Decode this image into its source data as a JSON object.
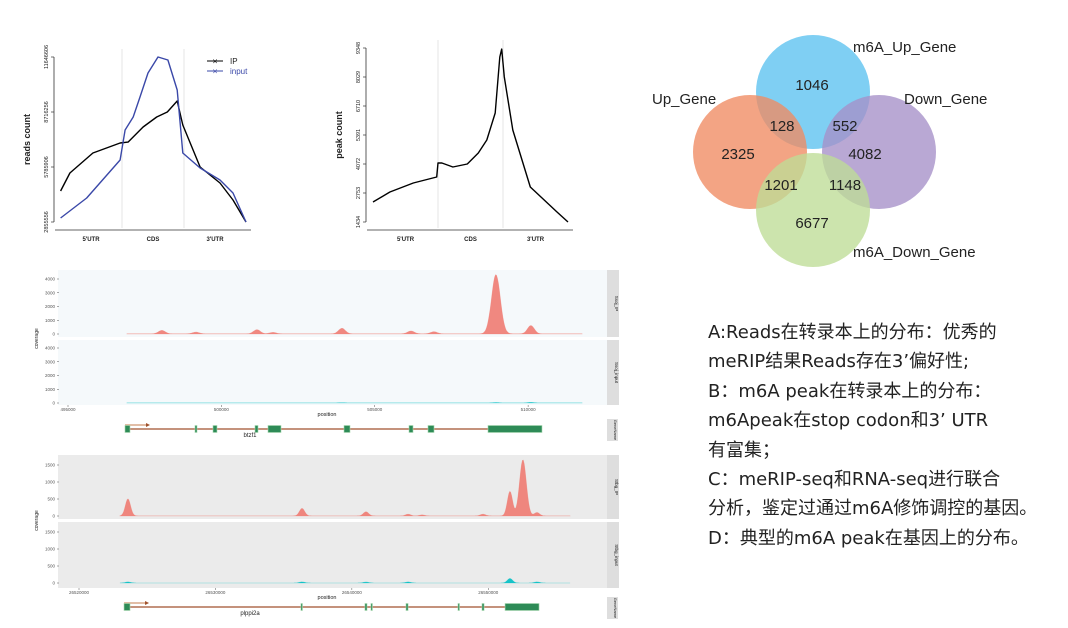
{
  "chart_data": [
    {
      "type": "line",
      "ylabel": "reads count",
      "categories": [
        "5'UTR",
        "CDS",
        "3'UTR"
      ],
      "xlim": [
        0,
        3
      ],
      "ylim": [
        2855556,
        11646606
      ],
      "yticks": [
        "2855556",
        "5785906",
        "8716256",
        "11646606"
      ],
      "legend": "top-right",
      "series": [
        {
          "name": "IP",
          "color": "#000000",
          "x": [
            0.01,
            0.16,
            0.53,
            0.97,
            1.1,
            1.34,
            1.56,
            1.73,
            1.89,
            1.98,
            2.26,
            2.58,
            2.79,
            3.0
          ],
          "y": [
            4507000,
            5466000,
            6532000,
            7064000,
            7118000,
            7917000,
            8450000,
            8716000,
            9302000,
            8024000,
            5786000,
            4934000,
            4028000,
            2856000
          ]
        },
        {
          "name": "input",
          "color": "#3a48a8",
          "x": [
            0.01,
            0.43,
            0.97,
            1.05,
            1.18,
            1.29,
            1.42,
            1.58,
            1.74,
            1.89,
            1.98,
            2.26,
            2.58,
            2.79,
            3.0
          ],
          "y": [
            3069000,
            4134000,
            6159000,
            7757000,
            8450000,
            9516000,
            10794000,
            11647000,
            11487000,
            9889000,
            6532000,
            5733000,
            5093000,
            4401000,
            2856000
          ]
        }
      ]
    },
    {
      "type": "line",
      "ylabel": "peak count",
      "categories": [
        "5'UTR",
        "CDS",
        "3'UTR"
      ],
      "xlim": [
        0,
        3
      ],
      "ylim": [
        1434,
        9348
      ],
      "yticks": [
        "1434",
        "2753",
        "4072",
        "5391",
        "6710",
        "8029",
        "9348"
      ],
      "series": [
        {
          "color": "#000000",
          "x": [
            0,
            0.26,
            0.62,
            0.98,
            1.0,
            1.06,
            1.23,
            1.45,
            1.62,
            1.75,
            1.88,
            1.95,
            1.98,
            2.02,
            2.15,
            2.42,
            2.83,
            3.0
          ],
          "y": [
            2344,
            2799,
            3208,
            3481,
            4118,
            4118,
            3936,
            4072,
            4572,
            5163,
            6392,
            8938,
            9300,
            8029,
            5618,
            3026,
            1889,
            1434
          ]
        }
      ]
    },
    {
      "type": "venn",
      "sets": [
        {
          "name": "m6A_Up_Gene",
          "color": "#5bc1f0",
          "only": "1046"
        },
        {
          "name": "Up_Gene",
          "color": "#f08a62",
          "only": "2325"
        },
        {
          "name": "Down_Gene",
          "color": "#a58fc8",
          "only": "4082"
        },
        {
          "name": "m6A_Down_Gene",
          "color": "#bedd96",
          "only": "6677"
        }
      ],
      "overlaps": {
        "Up_Gene&m6A_Up_Gene": "128",
        "m6A_Up_Gene&Down_Gene": "552",
        "Up_Gene&m6A_Down_Gene": "1201",
        "Down_Gene&m6A_Down_Gene": "1148"
      }
    },
    {
      "type": "area",
      "gene": "btzf1",
      "xlabel": "position",
      "ylabel": "coverage",
      "xticks": [
        "495000",
        "500000",
        "505000",
        "510000"
      ],
      "yticks": [
        "0",
        "1000",
        "2000",
        "3000",
        "4000"
      ],
      "ylim": [
        0,
        4000
      ],
      "gene_strip": "GeneName",
      "tracks": [
        {
          "name": "Ssoj_IP",
          "color": "#f07b72",
          "range": [
            496920,
            511760
          ],
          "peaks": [
            [
              498060,
              250
            ],
            [
              499170,
              120
            ],
            [
              501160,
              300
            ],
            [
              501680,
              100
            ],
            [
              503930,
              400
            ],
            [
              506180,
              200
            ],
            [
              506930,
              150
            ],
            [
              508950,
              4300
            ],
            [
              510090,
              600
            ]
          ]
        },
        {
          "name": "Ssoj_input",
          "color": "#00bfc4",
          "range": [
            496920,
            511760
          ],
          "peaks": [
            [
              503930,
              20
            ],
            [
              508950,
              30
            ],
            [
              510090,
              40
            ]
          ]
        }
      ],
      "exons": [
        [
          496858,
          497021
        ],
        [
          499140,
          499205
        ],
        [
          499727,
          499857
        ],
        [
          501096,
          501194
        ],
        [
          501520,
          501944
        ],
        [
          503998,
          504193
        ],
        [
          506117,
          506247
        ],
        [
          506736,
          506932
        ],
        [
          508692,
          510452
        ]
      ]
    },
    {
      "type": "area",
      "gene": "plppi2a",
      "xlabel": "position",
      "ylabel": "coverage",
      "xticks": [
        "26520000",
        "26530000",
        "26540000",
        "26550000"
      ],
      "yticks": [
        "0",
        "500",
        "1000",
        "1500"
      ],
      "ylim": [
        0,
        1500
      ],
      "gene_strip": "GeneName",
      "tracks": [
        {
          "name": "Stbg_IP",
          "color": "#f07b72",
          "range": [
            26523000,
            26556000
          ],
          "peaks": [
            [
              26523590,
              500
            ],
            [
              26536350,
              220
            ],
            [
              26541040,
              120
            ],
            [
              26544120,
              50
            ],
            [
              26545140,
              30
            ],
            [
              26549610,
              50
            ],
            [
              26551590,
              720
            ],
            [
              26552540,
              1650
            ],
            [
              26553570,
              100
            ]
          ]
        },
        {
          "name": "Stbg_input",
          "color": "#00bfc4",
          "range": [
            26523000,
            26556000
          ],
          "peaks": [
            [
              26523590,
              30
            ],
            [
              26536350,
              30
            ],
            [
              26541040,
              25
            ],
            [
              26544120,
              30
            ],
            [
              26551590,
              130
            ],
            [
              26553570,
              30
            ]
          ]
        }
      ],
      "exons": [
        [
          26523300,
          26523740
        ],
        [
          26536270,
          26536350
        ],
        [
          26540960,
          26541110
        ],
        [
          26541400,
          26541480
        ],
        [
          26543970,
          26544120
        ],
        [
          26547780,
          26547850
        ],
        [
          26549540,
          26549690
        ],
        [
          26551230,
          26553720
        ]
      ]
    }
  ],
  "caption": {
    "lines": [
      "A:Reads在转录本上的分布：优秀的",
      "meRIP结果Reads存在3’偏好性;",
      "B：m6A peak在转录本上的分布：",
      "m6Apeak在stop codon和3’ UTR",
      "有富集；",
      "C：meRIP-seq和RNA-seq进行联合",
      "分析，鉴定过通过m6A修饰调控的基因。",
      "D：典型的m6A peak在基因上的分布。"
    ]
  }
}
